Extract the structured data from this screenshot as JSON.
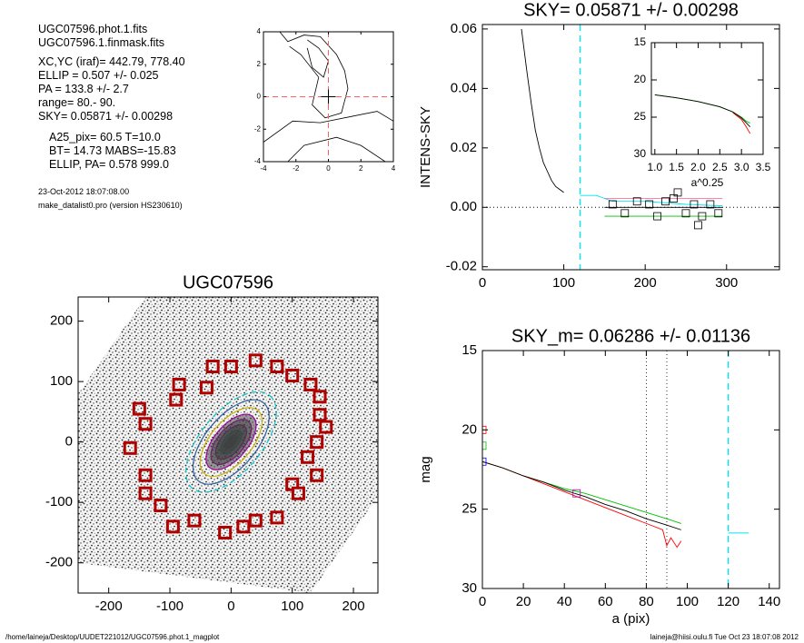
{
  "info": {
    "files": [
      "UGC07596.phot.1.fits",
      "UGC07596.1.finmask.fits"
    ],
    "params": [
      "XC,YC (iraf)=   442.79, 778.40",
      "ELLIP = 0.507 +/- 0.025",
      "PA    = 133.8 +/-   2.7",
      "range=   80.-   90.",
      "SKY= 0.05871 +/- 0.00298"
    ],
    "results": [
      "A25_pix= 60.5   T=10.0",
      "BT=  14.73   MABS=-15.83",
      "ELLIP, PA= 0.578   999.0"
    ],
    "date": "23-Oct-2012 18:07:08.00",
    "program": "make_datalist0.pro (version HS230610)"
  },
  "footer": {
    "path": "/home/laineja/Desktop/UUDET221012/UGC07596.phot.1_magplot",
    "user": "laineja@hiisi.oulu.fi  Tue Oct 23 18:07:08 2012"
  },
  "chart_data": [
    {
      "type": "contour",
      "xlim": [
        -4,
        4
      ],
      "ylim": [
        -4,
        4
      ],
      "xticks": [
        -4,
        -2,
        0,
        2,
        4
      ],
      "yticks": [
        -4,
        -2,
        0,
        2,
        4
      ]
    },
    {
      "type": "line",
      "title": "SKY= 0.05871 +/- 0.00298",
      "ylabel": "INTENS-SKY",
      "xlim": [
        0,
        365
      ],
      "ylim": [
        -0.021,
        0.0615
      ],
      "xticks": [
        0,
        100,
        200,
        300
      ],
      "yticks": [
        -0.02,
        {
          "value": 0,
          "label": "0.00"
        },
        0.02,
        0.04,
        0.06
      ],
      "hlines": [
        0
      ],
      "vlines": [
        {
          "value": 120,
          "color": "#00e5ee"
        }
      ],
      "series": [
        {
          "color": "#000000",
          "x": [
            48,
            55,
            60,
            65,
            70,
            75,
            80,
            85,
            90,
            95,
            100
          ],
          "values": [
            0.06,
            0.045,
            0.035,
            0.026,
            0.02,
            0.015,
            0.012,
            0.009,
            0.007,
            0.006,
            0.005
          ]
        },
        {
          "color": "#00e5ee",
          "x": [
            120,
            140,
            160,
            200,
            250,
            295
          ],
          "values": [
            0.004,
            0.004,
            0.002,
            0.002,
            0.001,
            0.0005
          ]
        },
        {
          "color": "#ff6fa0",
          "x": [
            150,
            295
          ],
          "values": [
            0.003,
            0.003
          ]
        },
        {
          "color": "#00c000",
          "x": [
            150,
            295
          ],
          "values": [
            -0.003,
            -0.003
          ]
        },
        {
          "color": "#000000",
          "x": [
            150,
            295
          ],
          "values": [
            0,
            0
          ]
        },
        {
          "color": "#000000",
          "marker": "square",
          "x": [
            160,
            175,
            190,
            205,
            215,
            225,
            235,
            240,
            250,
            260,
            265,
            270,
            280,
            290
          ],
          "values": [
            0.001,
            -0.002,
            0.002,
            0.001,
            -0.003,
            0.002,
            0.003,
            0.005,
            -0.002,
            0.001,
            -0.006,
            -0.003,
            0.001,
            -0.002
          ]
        }
      ]
    },
    {
      "type": "line",
      "xlabel": "a^0.25",
      "xlim": [
        0.92,
        3.5
      ],
      "ylim": [
        30,
        15
      ],
      "xticks": [
        {
          "value": 1,
          "label": "1.0"
        },
        1.5,
        {
          "value": 2,
          "label": "2.0"
        },
        2.5,
        {
          "value": 3,
          "label": "3.0"
        },
        3.5
      ],
      "yticks": [
        15,
        20,
        25,
        30
      ],
      "series": [
        {
          "color": "#00c000",
          "x": [
            1.0,
            1.5,
            2.0,
            2.5,
            2.8,
            3.0,
            3.1,
            3.2
          ],
          "values": [
            22,
            22.4,
            22.9,
            23.6,
            24.3,
            25,
            25.5,
            25.8
          ]
        },
        {
          "color": "#ff0000",
          "x": [
            2.8,
            3.0,
            3.1,
            3.2
          ],
          "values": [
            24.4,
            25.3,
            26.2,
            27.2
          ]
        },
        {
          "color": "#000000",
          "x": [
            1.0,
            1.5,
            2.0,
            2.5,
            2.8,
            3.0,
            3.1,
            3.2
          ],
          "values": [
            22,
            22.4,
            22.9,
            23.6,
            24.3,
            25.1,
            25.7,
            26.3
          ]
        }
      ]
    },
    {
      "type": "image",
      "title": "UGC07596",
      "xlim": [
        -250,
        240
      ],
      "ylim": [
        -250,
        240
      ],
      "xticks": [
        -200,
        -100,
        0,
        100,
        200
      ],
      "yticks": [
        -200,
        -100,
        0,
        100,
        200
      ],
      "series": [
        {
          "color": "#b00000",
          "marker": "square",
          "x": [
            -150,
            -140,
            -165,
            -140,
            -140,
            -115,
            -90,
            -85,
            -40,
            -30,
            0,
            40,
            75,
            100,
            130,
            145,
            145,
            155,
            140,
            125,
            140,
            100,
            110,
            75,
            40,
            20,
            -10,
            -60,
            -95
          ],
          "values": [
            55,
            30,
            -10,
            -55,
            -85,
            -105,
            70,
            95,
            90,
            125,
            125,
            135,
            125,
            110,
            95,
            75,
            45,
            25,
            0,
            -25,
            -55,
            -70,
            -85,
            -125,
            -130,
            -140,
            -150,
            -130,
            -140
          ]
        }
      ]
    },
    {
      "type": "line",
      "title": "SKY_m=  0.06286 +/- 0.01136",
      "xlabel": "a (pix)",
      "ylabel": "mag",
      "xlim": [
        0,
        145
      ],
      "ylim": [
        30,
        15
      ],
      "xticks": [
        0,
        20,
        40,
        60,
        80,
        100,
        120,
        140
      ],
      "yticks": [
        15,
        20,
        25,
        30
      ],
      "vlines": [
        {
          "value": 80,
          "color": "#000000"
        },
        {
          "value": 90,
          "color": "#000000"
        },
        {
          "value": 120,
          "color": "#00e5ee"
        }
      ],
      "series": [
        {
          "color": "#00c000",
          "x": [
            0,
            10,
            20,
            30,
            40,
            50,
            60,
            70,
            80,
            90,
            97
          ],
          "values": [
            22,
            22.4,
            22.9,
            23.3,
            23.7,
            24.0,
            24.4,
            24.8,
            25.2,
            25.6,
            25.9
          ]
        },
        {
          "color": "#ff0000",
          "x": [
            0,
            10,
            20,
            30,
            40,
            50,
            60,
            70,
            80,
            88,
            90,
            92,
            95,
            97
          ],
          "values": [
            22,
            22.4,
            22.9,
            23.4,
            23.9,
            24.4,
            24.9,
            25.4,
            25.9,
            26.3,
            27.3,
            26.8,
            27.4,
            27.0
          ]
        },
        {
          "color": "#000000",
          "x": [
            0,
            10,
            20,
            30,
            40,
            50,
            60,
            70,
            80,
            90,
            97
          ],
          "values": [
            22,
            22.4,
            22.9,
            23.3,
            23.8,
            24.2,
            24.7,
            25.1,
            25.6,
            26.0,
            26.3
          ]
        },
        {
          "color": "#00e5ee",
          "x": [
            120,
            130
          ],
          "values": [
            26.5,
            26.5
          ]
        },
        {
          "color": "#ff0000",
          "marker": "square",
          "x": [
            0
          ],
          "values": [
            20
          ]
        },
        {
          "color": "#00c000",
          "marker": "square",
          "x": [
            0
          ],
          "values": [
            21
          ]
        },
        {
          "color": "#0000ff",
          "marker": "square",
          "x": [
            0
          ],
          "values": [
            22
          ]
        },
        {
          "color": "#a000a0",
          "marker": "square",
          "x": [
            46
          ],
          "values": [
            24
          ]
        }
      ]
    }
  ]
}
